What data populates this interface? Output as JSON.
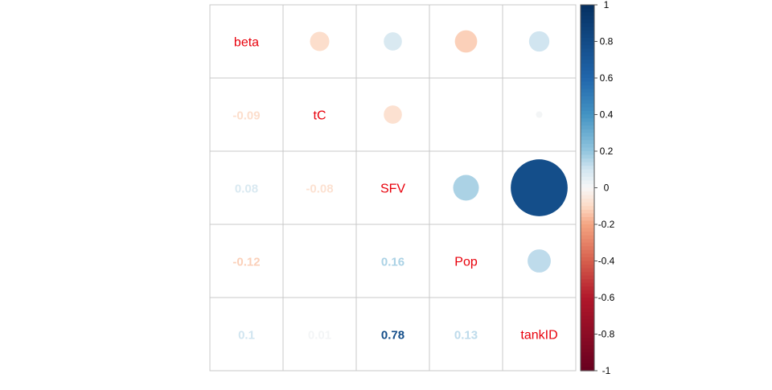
{
  "chart_data": {
    "type": "heatmap",
    "variables": [
      "beta",
      "tC",
      "SFV",
      "Pop",
      "tankID"
    ],
    "matrix": [
      [
        1,
        -0.09,
        0.08,
        -0.12,
        0.1
      ],
      [
        -0.09,
        1,
        -0.08,
        0.0,
        0.01
      ],
      [
        0.08,
        -0.08,
        1,
        0.16,
        0.78
      ],
      [
        -0.12,
        0.0,
        0.16,
        1,
        0.13
      ],
      [
        0.1,
        0.01,
        0.78,
        0.13,
        1
      ]
    ],
    "lower_labels": [
      [
        "",
        "",
        "",
        "",
        ""
      ],
      [
        "-0.09",
        "",
        "",
        "",
        ""
      ],
      [
        "0.08",
        "-0.08",
        "",
        "",
        ""
      ],
      [
        "-0.12",
        "",
        "0.16",
        "",
        ""
      ],
      [
        "0.1",
        "0.01",
        "0.78",
        "0.13",
        ""
      ]
    ],
    "colorbar": {
      "ticks": [
        "1",
        "0.8",
        "0.6",
        "0.4",
        "0.2",
        "0",
        "-0.2",
        "-0.4",
        "-0.6",
        "-0.8",
        "-1"
      ],
      "range": [
        -1,
        1
      ]
    },
    "diagonal_label_color": "#e8000b",
    "colors": {
      "negative_strong": "#67001f",
      "negative_mid": "#d6604d",
      "neutral": "#f7f7f7",
      "positive_mid": "#4393c3",
      "positive_strong": "#053061"
    }
  }
}
